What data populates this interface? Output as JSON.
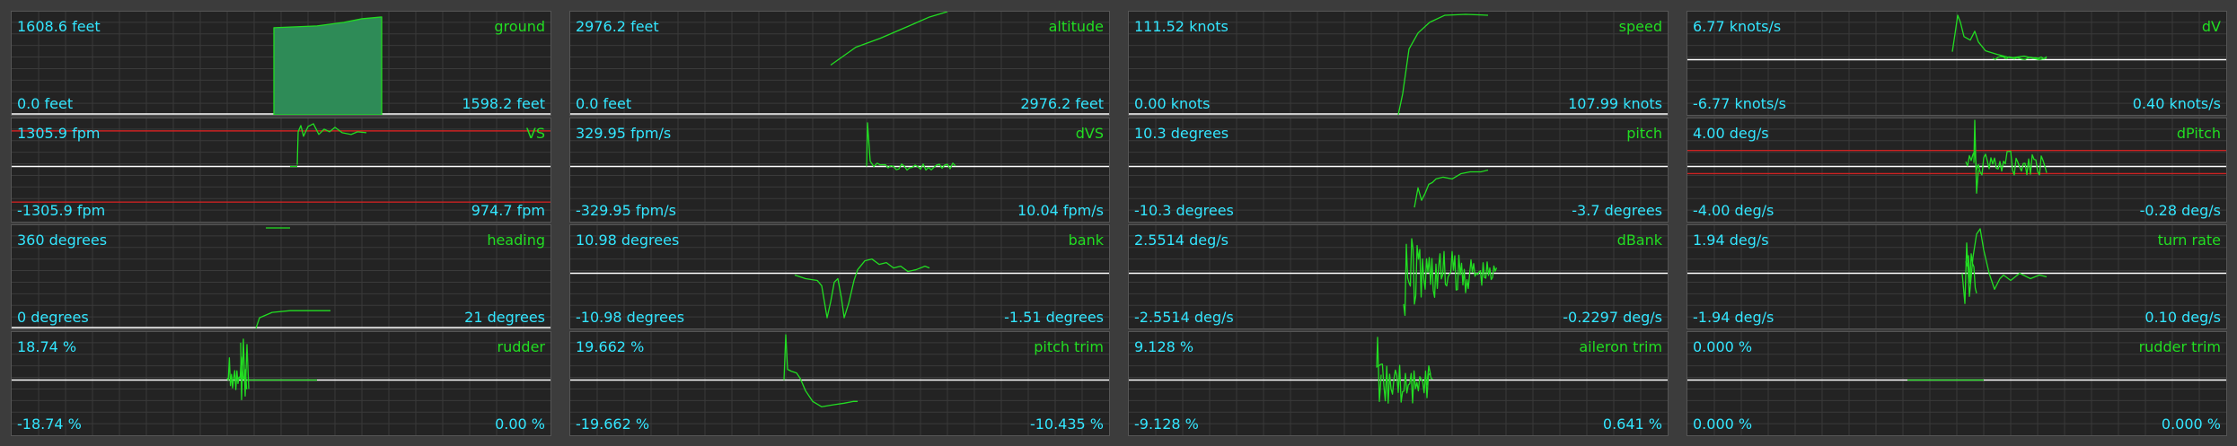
{
  "colors": {
    "background": "#3c3c3c",
    "panel": "#232323",
    "grid": "#3a3a3a",
    "trace": "#22dd22",
    "value_text": "#33e6ff",
    "name_text": "#22dd22",
    "baseline": "#ffffff",
    "limit_line": "#cc2222"
  },
  "panels": [
    {
      "name": "ground",
      "top": "1608.6 feet",
      "bottom_left": "0.0 feet",
      "bottom_right": "1598.2 feet",
      "style": "fill",
      "baseline": "bottom"
    },
    {
      "name": "altitude",
      "top": "2976.2 feet",
      "bottom_left": "0.0 feet",
      "bottom_right": "2976.2 feet",
      "style": "line",
      "baseline": "bottom"
    },
    {
      "name": "speed",
      "top": "111.52 knots",
      "bottom_left": "0.00 knots",
      "bottom_right": "107.99 knots",
      "style": "line",
      "baseline": "bottom"
    },
    {
      "name": "dV",
      "top": "6.77 knots/s",
      "bottom_left": "-6.77 knots/s",
      "bottom_right": "0.40 knots/s",
      "style": "line",
      "baseline": "middle"
    },
    {
      "name": "VS",
      "top": "1305.9 fpm",
      "bottom_left": "-1305.9 fpm",
      "bottom_right": "974.7 fpm",
      "style": "line",
      "baseline": "middle",
      "limits": "vs"
    },
    {
      "name": "dVS",
      "top": "329.95 fpm/s",
      "bottom_left": "-329.95 fpm/s",
      "bottom_right": "10.04 fpm/s",
      "style": "line",
      "baseline": "middle"
    },
    {
      "name": "pitch",
      "top": "10.3 degrees",
      "bottom_left": "-10.3 degrees",
      "bottom_right": "-3.7 degrees",
      "style": "line",
      "baseline": "middle"
    },
    {
      "name": "dPitch",
      "top": "4.00 deg/s",
      "bottom_left": "-4.00 deg/s",
      "bottom_right": "-0.28 deg/s",
      "style": "line",
      "baseline": "middle",
      "limits": "dpitch"
    },
    {
      "name": "heading",
      "top": "360 degrees",
      "bottom_left": "0 degrees",
      "bottom_right": "21 degrees",
      "style": "line",
      "baseline": "bottom"
    },
    {
      "name": "bank",
      "top": "10.98 degrees",
      "bottom_left": "-10.98 degrees",
      "bottom_right": "-1.51 degrees",
      "style": "line",
      "baseline": "middle"
    },
    {
      "name": "dBank",
      "top": "2.5514 deg/s",
      "bottom_left": "-2.5514 deg/s",
      "bottom_right": "-0.2297 deg/s",
      "style": "line",
      "baseline": "middle"
    },
    {
      "name": "turn rate",
      "top": "1.94 deg/s",
      "bottom_left": "-1.94 deg/s",
      "bottom_right": "0.10 deg/s",
      "style": "line",
      "baseline": "middle"
    },
    {
      "name": "rudder",
      "top": "18.74 %",
      "bottom_left": "-18.74 %",
      "bottom_right": "0.00 %",
      "style": "line",
      "baseline": "middle"
    },
    {
      "name": "pitch trim",
      "top": "19.662 %",
      "bottom_left": "-19.662 %",
      "bottom_right": "-10.435 %",
      "style": "line",
      "baseline": "middle"
    },
    {
      "name": "aileron trim",
      "top": "9.128 %",
      "bottom_left": "-9.128 %",
      "bottom_right": "0.641 %",
      "style": "line",
      "baseline": "middle"
    },
    {
      "name": "rudder trim",
      "top": "0.000 %",
      "bottom_left": "0.000 %",
      "bottom_right": "0.000 %",
      "style": "line",
      "baseline": "middle"
    }
  ]
}
